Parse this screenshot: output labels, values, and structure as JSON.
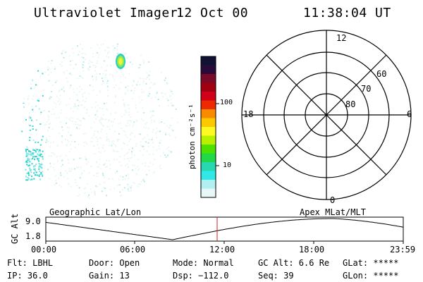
{
  "header": {
    "instrument": "Ultraviolet Imager",
    "date": "12 Oct 00",
    "time": "11:38:04 UT"
  },
  "colorbar": {
    "unit_label": "photon cm⁻²s⁻¹",
    "ticks": [
      "100",
      "10"
    ],
    "colors": [
      "#111133",
      "#2a0a3a",
      "#7a0a2a",
      "#a00010",
      "#d0001a",
      "#ee2a00",
      "#f88a00",
      "#fcc800",
      "#fcfa22",
      "#b8f000",
      "#50e000",
      "#20d848",
      "#28d8b0",
      "#30e8e8",
      "#b0f0f0",
      "#e8f8f8"
    ]
  },
  "polar_grid": {
    "lat_labels": [
      "80",
      "70",
      "60"
    ],
    "mlt_labels": {
      "top": "12",
      "left": "18",
      "right": "6",
      "bottom": "0"
    }
  },
  "timeline": {
    "left_label": "Geographic Lat/Lon",
    "right_label": "Apex MLat/MLT",
    "y_label": "GC Alt",
    "y_max": "9.0",
    "y_min": "1.8",
    "time_ticks": [
      "00:00",
      "06:00",
      "12:00",
      "18:00",
      "23:59"
    ],
    "current_time_color": "#d02020"
  },
  "info": {
    "flt": "Flt: LBHL",
    "ip": "IP: 36.0",
    "door": "Door: Open",
    "gain": "Gain: 13",
    "mode": "Mode: Normal",
    "dsp": "Dsp: −112.0",
    "gc_alt": "GC Alt: 6.6 Re",
    "seq": "Seq: 39",
    "glat": "GLat: *****",
    "glon": "GLon: *****"
  }
}
